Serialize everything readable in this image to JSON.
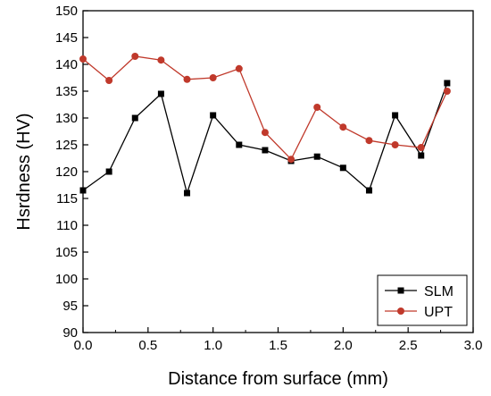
{
  "chart_data": {
    "type": "line",
    "title": "",
    "xlabel": "Distance from surface (mm)",
    "ylabel": "Hsrdness (HV)",
    "xlim": [
      0.0,
      3.0
    ],
    "ylim": [
      90,
      150
    ],
    "xticks": [
      0.0,
      0.5,
      1.0,
      1.5,
      2.0,
      2.5,
      3.0
    ],
    "xtick_labels": [
      "0.0",
      "0.5",
      "1.0",
      "1.5",
      "2.0",
      "2.5",
      "3.0"
    ],
    "yticks": [
      90,
      95,
      100,
      105,
      110,
      115,
      120,
      125,
      130,
      135,
      140,
      145,
      150
    ],
    "ytick_labels": [
      "90",
      "95",
      "100",
      "105",
      "110",
      "115",
      "120",
      "125",
      "130",
      "135",
      "140",
      "145",
      "150"
    ],
    "grid": false,
    "legend_position": "bottom-right",
    "series": [
      {
        "name": "SLM",
        "color": "#000000",
        "marker": "square",
        "x": [
          0.0,
          0.2,
          0.4,
          0.6,
          0.8,
          1.0,
          1.2,
          1.4,
          1.6,
          1.8,
          2.0,
          2.2,
          2.4,
          2.6,
          2.8
        ],
        "y": [
          116.5,
          120.0,
          130.0,
          134.5,
          116.0,
          130.5,
          125.0,
          124.0,
          122.0,
          122.8,
          120.7,
          116.5,
          130.5,
          123.0,
          136.5
        ]
      },
      {
        "name": "UPT",
        "color": "#c0392b",
        "marker": "circle",
        "x": [
          0.0,
          0.2,
          0.4,
          0.6,
          0.8,
          1.0,
          1.2,
          1.4,
          1.6,
          1.8,
          2.0,
          2.2,
          2.4,
          2.6,
          2.8
        ],
        "y": [
          141.0,
          137.0,
          141.5,
          140.8,
          137.2,
          137.5,
          139.2,
          127.3,
          122.3,
          132.0,
          128.3,
          125.8,
          125.0,
          124.5,
          135.0
        ]
      }
    ]
  }
}
